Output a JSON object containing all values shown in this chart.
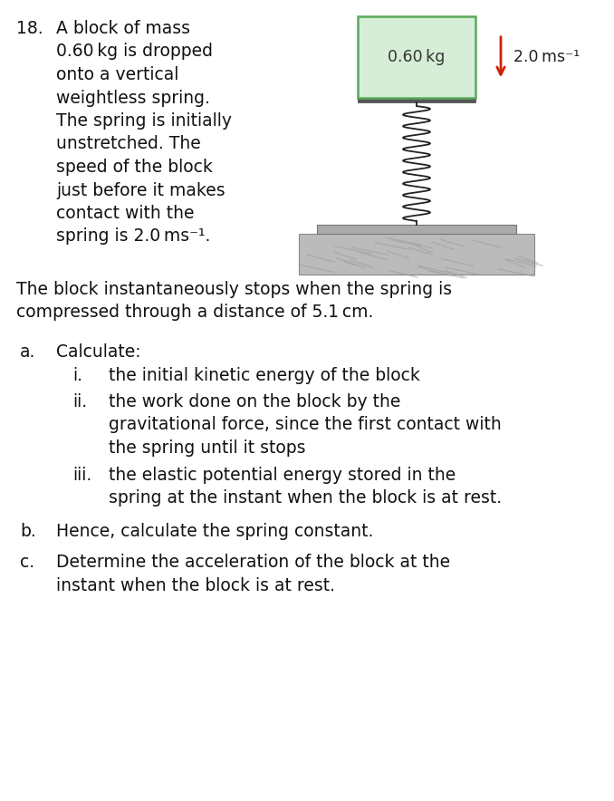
{
  "question_number": "18.",
  "problem_text_lines": [
    "A block of mass",
    "0.60 kg is dropped",
    "onto a vertical",
    "weightless spring.",
    "The spring is initially",
    "unstretched. The",
    "speed of the block",
    "just before it makes",
    "contact with the",
    "spring is 2.0 ms⁻¹."
  ],
  "continuation_line1": "The block instantaneously stops when the spring is",
  "continuation_line2": "compressed through a distance of 5.1 cm.",
  "parts": [
    {
      "label": "a.",
      "text": "Calculate:",
      "subparts": [
        {
          "label": "i.",
          "lines": [
            "the initial kinetic energy of the block"
          ]
        },
        {
          "label": "ii.",
          "lines": [
            "the work done on the block by the",
            "gravitational force, since the first contact with",
            "the spring until it stops"
          ]
        },
        {
          "label": "iii.",
          "lines": [
            "the elastic potential energy stored in the",
            "spring at the instant when the block is at rest."
          ]
        }
      ]
    },
    {
      "label": "b.",
      "text_lines": [
        "Hence, calculate the spring constant."
      ],
      "subparts": []
    },
    {
      "label": "c.",
      "text_lines": [
        "Determine the acceleration of the block at the",
        "instant when the block is at rest."
      ],
      "subparts": []
    }
  ],
  "block_label": "0.60 kg",
  "arrow_label": "2.0 ms⁻¹",
  "block_fill": "#d6edd8",
  "block_edge": "#5aaa5a",
  "arrow_color": "#cc2200",
  "ground_fill": "#bbbbbb",
  "plate_fill": "#aaaaaa",
  "spring_color": "#222222",
  "background": "#ffffff",
  "text_color": "#111111",
  "font_size": 13.5
}
